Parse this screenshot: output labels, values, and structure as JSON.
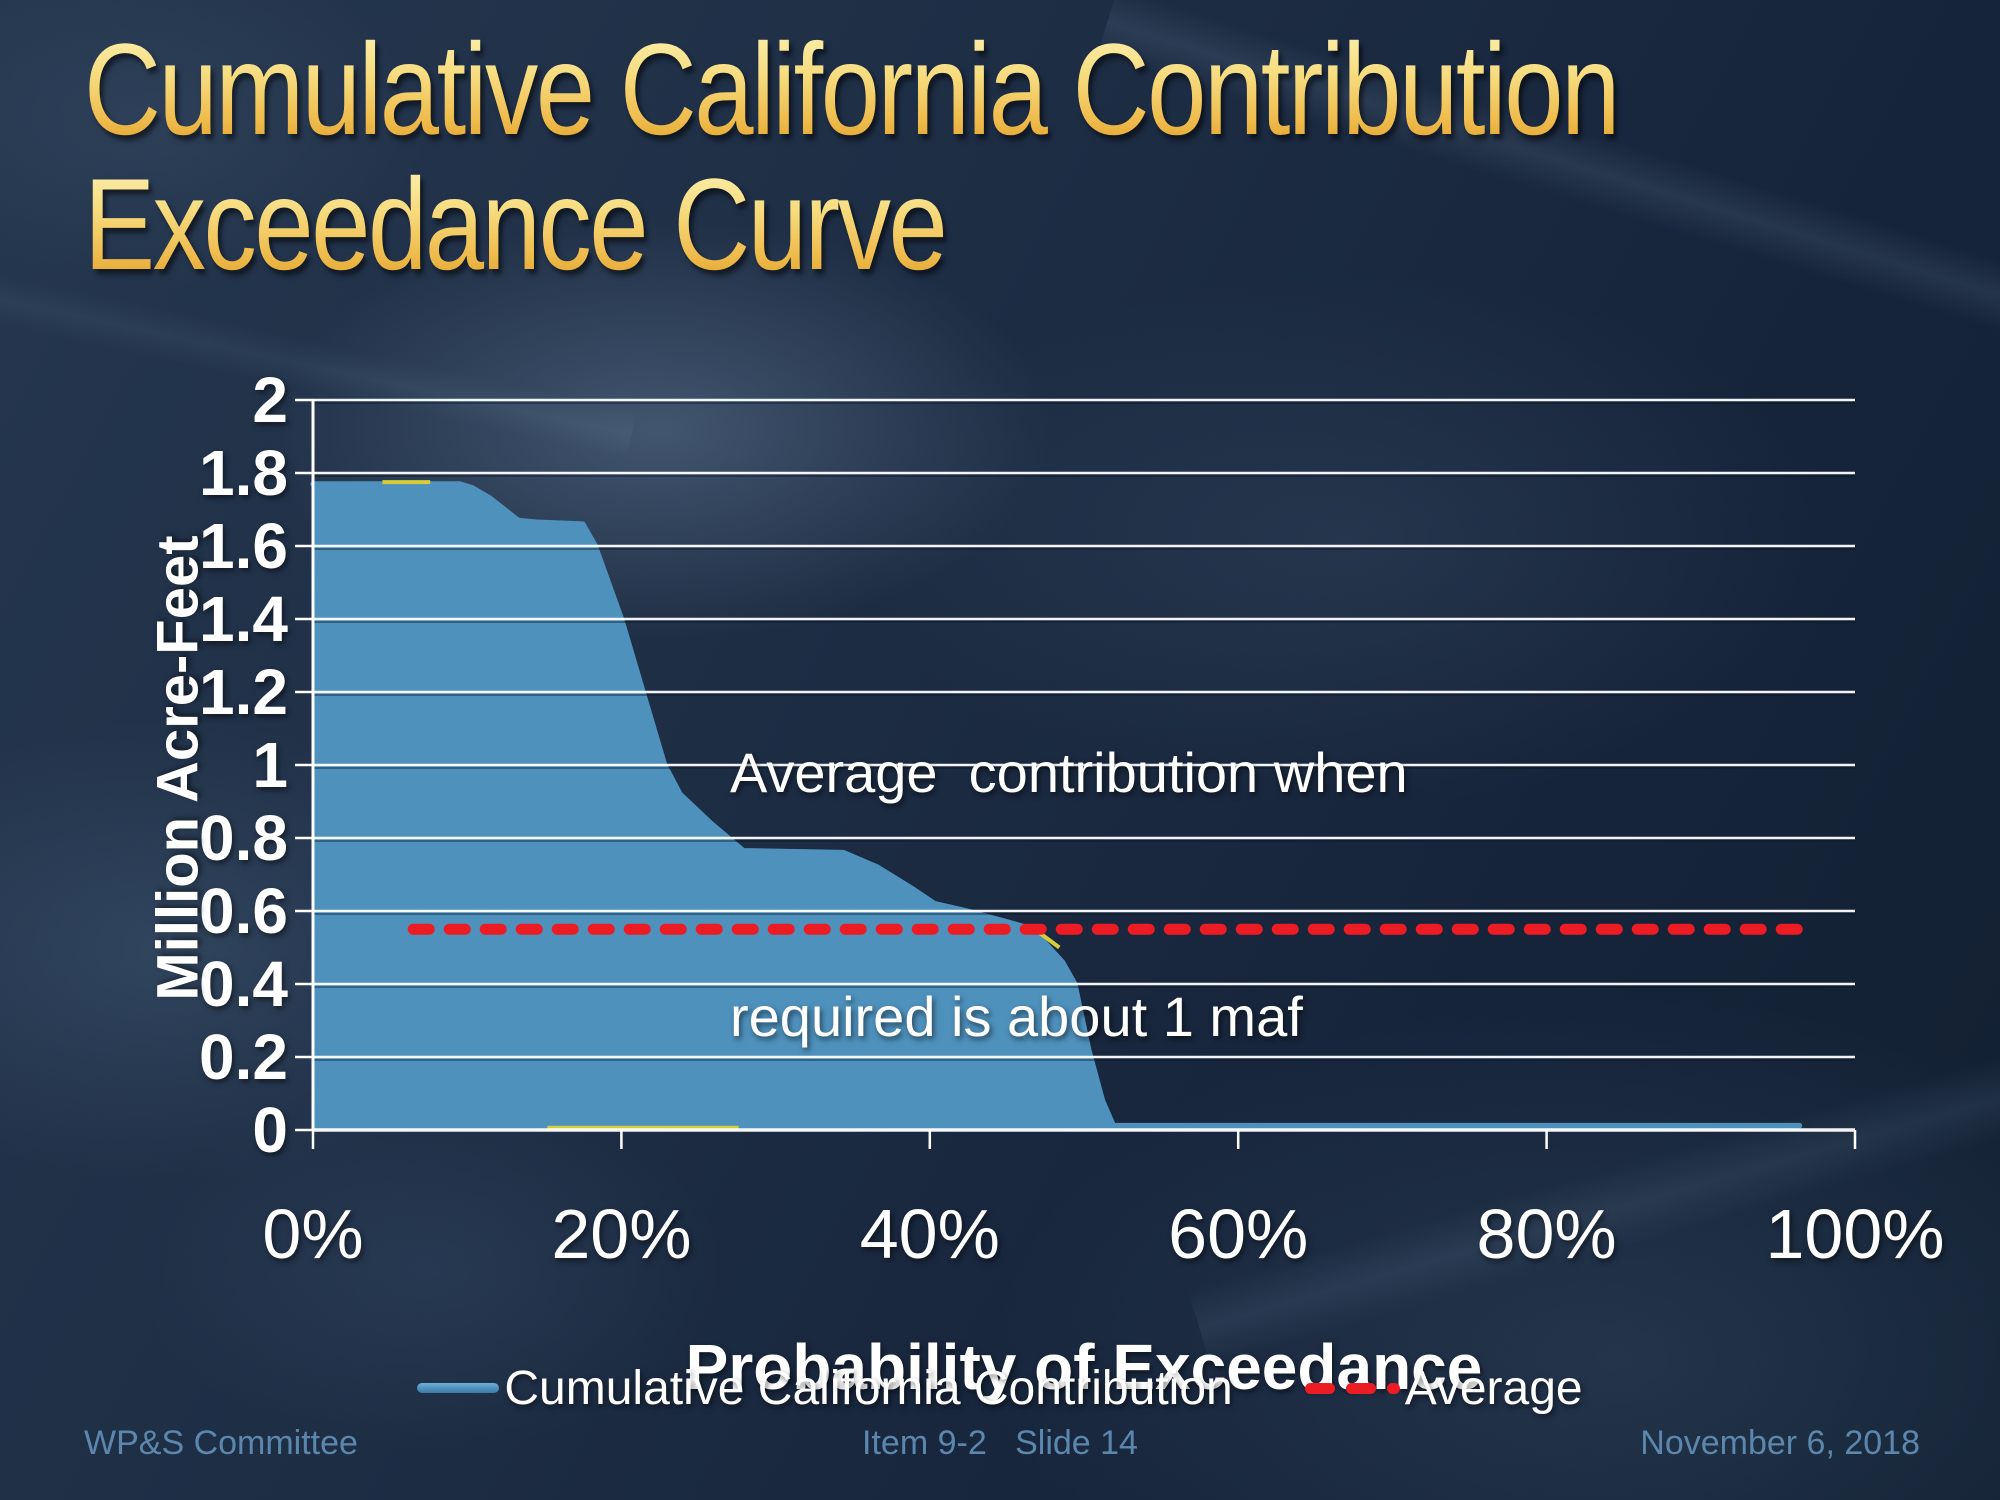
{
  "slide": {
    "title": {
      "line1": "Cumulative California Contribution",
      "line2": "Exceedance Curve"
    },
    "footer": {
      "left": "WP&S Committee",
      "center": "Item 9-2   Slide 14",
      "right": "November 6, 2018"
    }
  },
  "annotation": {
    "line1": "Average  contribution when",
    "line2": "required is about 1 maf"
  },
  "legend": {
    "position": "bottom",
    "items": [
      {
        "label": "Cumulative California Contribution",
        "swatch": "solid-line",
        "color": "#4e91bd"
      },
      {
        "label": "Average",
        "swatch": "dashed-line",
        "color": "#ec1c24"
      }
    ]
  },
  "chart_data": {
    "type": "area",
    "title": "Cumulative California Contribution Exceedance Curve",
    "xlabel": "Probability of Exceedance",
    "ylabel": "Million Acre-Feet",
    "xlim": [
      0,
      100
    ],
    "ylim": [
      0,
      2
    ],
    "grid": "horizontal",
    "legend_position": "bottom",
    "x_ticks": [
      {
        "value": 0,
        "label": "0%"
      },
      {
        "value": 20,
        "label": "20%"
      },
      {
        "value": 40,
        "label": "40%"
      },
      {
        "value": 60,
        "label": "60%"
      },
      {
        "value": 80,
        "label": "80%"
      },
      {
        "value": 100,
        "label": "100%"
      }
    ],
    "y_ticks": [
      {
        "value": 2,
        "label": "2"
      },
      {
        "value": 1.8,
        "label": "1.8"
      },
      {
        "value": 1.6,
        "label": "1.6"
      },
      {
        "value": 1.4,
        "label": "1.4"
      },
      {
        "value": 1.2,
        "label": "1.2"
      },
      {
        "value": 1,
        "label": "1"
      },
      {
        "value": 0.8,
        "label": "0.8"
      },
      {
        "value": 0.6,
        "label": "0.6"
      },
      {
        "value": 0.4,
        "label": "0.4"
      },
      {
        "value": 0.2,
        "label": "0.2"
      },
      {
        "value": 0,
        "label": "0"
      }
    ],
    "series": [
      {
        "name": "Cumulative California Contribution",
        "type": "area",
        "color": "#4e91bd",
        "points": [
          [
            0,
            1.77
          ],
          [
            9.5,
            1.77
          ],
          [
            10.3,
            1.76
          ],
          [
            11.5,
            1.73
          ],
          [
            13.3,
            1.67
          ],
          [
            14.5,
            1.665
          ],
          [
            17.5,
            1.66
          ],
          [
            18.3,
            1.6
          ],
          [
            20.0,
            1.4
          ],
          [
            21.4,
            1.2
          ],
          [
            22.8,
            1.0
          ],
          [
            23.8,
            0.92
          ],
          [
            25.8,
            0.84
          ],
          [
            27.2,
            0.79
          ],
          [
            27.9,
            0.765
          ],
          [
            34.4,
            0.76
          ],
          [
            36.6,
            0.72
          ],
          [
            38.9,
            0.66
          ],
          [
            40.3,
            0.62
          ],
          [
            42.4,
            0.6
          ],
          [
            45.0,
            0.57
          ],
          [
            46.7,
            0.55
          ],
          [
            47.3,
            0.52
          ],
          [
            48.6,
            0.46
          ],
          [
            49.4,
            0.4
          ],
          [
            50.3,
            0.22
          ],
          [
            51.2,
            0.08
          ],
          [
            51.9,
            0.012
          ],
          [
            96.4,
            0.012
          ]
        ]
      },
      {
        "name": "Average",
        "type": "dashed-line",
        "color": "#ec1c24",
        "value": 0.55,
        "x_start": 6.5,
        "x_end": 96.3
      }
    ],
    "hidden_series_fragments": {
      "color": "#d6cd3a",
      "segments": [
        [
          [
            4.5,
            1.775
          ],
          [
            7.6,
            1.775
          ]
        ],
        [
          [
            15.2,
            0.006
          ],
          [
            27.6,
            0.006
          ]
        ],
        [
          [
            46.8,
            0.55
          ],
          [
            48.4,
            0.5
          ]
        ]
      ]
    },
    "annotation_text": "Average  contribution when required is about 1 maf"
  },
  "colors": {
    "background_top": "#25374f",
    "background_bottom": "#122031",
    "title_gradient_top": "#fcf2b4",
    "title_gradient_bottom": "#dc9c25",
    "area_fill": "#4e91bd",
    "average_line": "#ec1c24",
    "gridline": "#ffffff",
    "axis_text": "#ffffff",
    "annotation_text": "#ffffff",
    "footer_text": "#5b87ad",
    "sliver": "#d6cd3a"
  }
}
